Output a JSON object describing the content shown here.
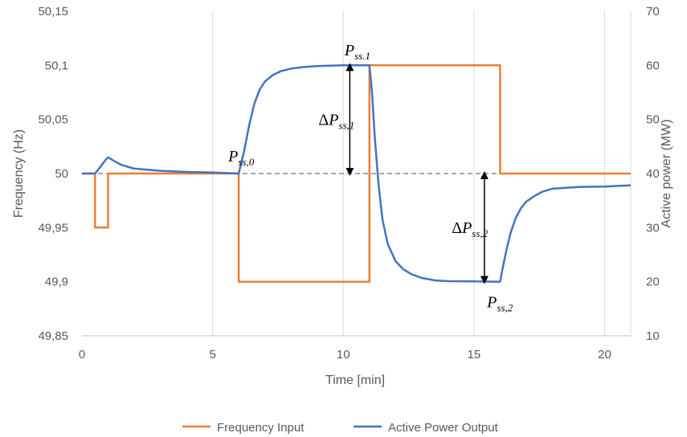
{
  "chart_data": {
    "type": "line",
    "xlabel": "Time [min]",
    "ylabel_left": "Frequency (Hz)",
    "ylabel_right": "Active power (MW)",
    "xlim": [
      0,
      21
    ],
    "xticks": [
      0,
      5,
      10,
      15,
      20
    ],
    "ylim_left": [
      49.85,
      50.15
    ],
    "yticks_left": [
      49.85,
      49.9,
      49.95,
      50,
      50.05,
      50.1,
      50.15
    ],
    "yticks_left_labels": [
      "49,85",
      "49,9",
      "49,95",
      "50",
      "50,05",
      "50,1",
      "50,15"
    ],
    "ylim_right": [
      10,
      70
    ],
    "yticks_right": [
      10,
      20,
      30,
      40,
      50,
      60,
      70
    ],
    "grid": "vertical",
    "reference_line": {
      "axis": "left",
      "y": 50,
      "style": "dashed",
      "color": "#8c8c8c"
    },
    "legend_position": "bottom-center",
    "series": [
      {
        "name": "Frequency Input",
        "axis": "left",
        "color": "#ED7D31",
        "x": [
          0,
          0.5,
          0.5,
          1.0,
          1.0,
          6.0,
          6.0,
          11.0,
          11.0,
          16.0,
          16.0,
          21
        ],
        "y": [
          50,
          50,
          49.95,
          49.95,
          50,
          50,
          49.9,
          49.9,
          50.1,
          50.1,
          50,
          50
        ]
      },
      {
        "name": "Active Power Output",
        "axis": "right",
        "color": "#4472C4",
        "x": [
          0,
          0.5,
          0.7,
          0.9,
          1.0,
          1.2,
          1.5,
          2.0,
          3.0,
          4.0,
          5.0,
          6.0,
          6.2,
          6.4,
          6.6,
          6.8,
          7.0,
          7.3,
          7.6,
          8.0,
          8.5,
          9.0,
          10.0,
          11.0,
          11.1,
          11.2,
          11.35,
          11.5,
          11.7,
          12.0,
          12.3,
          12.6,
          13.0,
          13.5,
          14.0,
          15.0,
          16.0,
          16.1,
          16.25,
          16.4,
          16.6,
          16.8,
          17.0,
          17.3,
          17.6,
          18.0,
          19.0,
          20.0,
          21
        ],
        "y": [
          40,
          40,
          41.2,
          42.5,
          43,
          42.4,
          41.6,
          40.9,
          40.5,
          40.3,
          40.2,
          40,
          44,
          49,
          53,
          55.5,
          57,
          58.2,
          58.9,
          59.4,
          59.7,
          59.85,
          60,
          60,
          55,
          47,
          38,
          31.5,
          27,
          23.8,
          22.3,
          21.4,
          20.7,
          20.25,
          20.1,
          20.05,
          20,
          22.5,
          26,
          29,
          31.8,
          33.6,
          34.8,
          35.8,
          36.6,
          37.2,
          37.5,
          37.6,
          37.8
        ]
      }
    ],
    "annotations": [
      {
        "base": "P",
        "sub": "ss,0",
        "x": 5.6,
        "y_right": 42.2
      },
      {
        "base": "P",
        "sub": "ss.1",
        "x": 10.05,
        "y_right": 61.8
      },
      {
        "base": "P",
        "sub": "ss,2",
        "x": 15.5,
        "y_right": 15.3
      },
      {
        "base": "ΔP",
        "sub": "ss,1",
        "x": 9.05,
        "y_right": 49
      },
      {
        "base": "ΔP",
        "sub": "ss,2",
        "x": 14.15,
        "y_right": 29
      },
      {
        "type": "double_arrow",
        "x": 10.25,
        "y_from_right": 40,
        "y_to_right": 60
      },
      {
        "type": "double_arrow",
        "x": 15.4,
        "y_from_right": 20,
        "y_to_right": 40
      }
    ]
  }
}
